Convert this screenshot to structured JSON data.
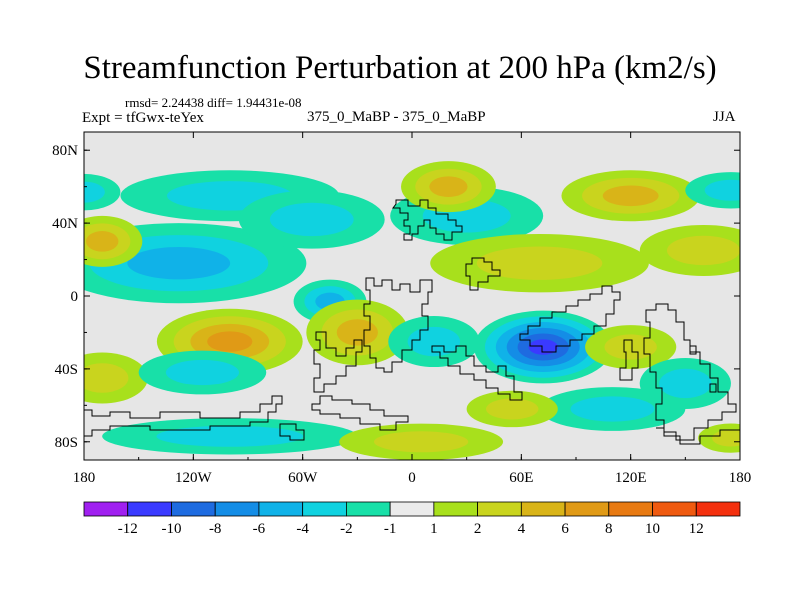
{
  "chart_data": {
    "type": "heatmap",
    "title": "Streamfunction Perturbation at 200 hPa (km2/s)",
    "stats_line": "rmsd= 2.24438 diff= 1.94431e-08",
    "left_label": "Expt = tfGwx-teYex",
    "center_label": "375_0_MaBP - 375_0_MaBP",
    "right_label": "JJA",
    "x_ticks": [
      {
        "value": -180,
        "label": "180"
      },
      {
        "value": -120,
        "label": "120W"
      },
      {
        "value": -60,
        "label": "60W"
      },
      {
        "value": 0,
        "label": "0"
      },
      {
        "value": 60,
        "label": "60E"
      },
      {
        "value": 120,
        "label": "120E"
      },
      {
        "value": 180,
        "label": "180"
      }
    ],
    "y_ticks": [
      {
        "value": 80,
        "label": "80N"
      },
      {
        "value": 40,
        "label": "40N"
      },
      {
        "value": 0,
        "label": "0"
      },
      {
        "value": -40,
        "label": "40S"
      },
      {
        "value": -80,
        "label": "80S"
      }
    ],
    "xlim": [
      -180,
      180
    ],
    "ylim": [
      -90,
      90
    ],
    "colorbar": {
      "levels": [
        "-12",
        "-10",
        "-8",
        "-6",
        "-4",
        "-2",
        "-1",
        "1",
        "2",
        "4",
        "6",
        "8",
        "10",
        "12"
      ],
      "colors": [
        "#a020f0",
        "#3a3aff",
        "#1e6be0",
        "#148de6",
        "#10b2e8",
        "#10d2e0",
        "#18e0a8",
        "#ebebeb",
        "#a8e01c",
        "#c9d41e",
        "#d9b418",
        "#e09a16",
        "#e87a12",
        "#ef5a10",
        "#f4300e"
      ]
    },
    "blobs": [
      {
        "lon": -122,
        "lat": 15,
        "value": -7.5,
        "rx": 52,
        "ry": 14
      },
      {
        "lon": -128,
        "lat": 18,
        "value": -4,
        "rx": 70,
        "ry": 22
      },
      {
        "lon": -100,
        "lat": 55,
        "value": -2.5,
        "rx": 60,
        "ry": 14
      },
      {
        "lon": -55,
        "lat": 42,
        "value": -3,
        "rx": 40,
        "ry": 16
      },
      {
        "lon": 30,
        "lat": 44,
        "value": -3,
        "rx": 42,
        "ry": 16
      },
      {
        "lon": -170,
        "lat": 30,
        "value": 5,
        "rx": 22,
        "ry": 14
      },
      {
        "lon": 20,
        "lat": 60,
        "value": 4.5,
        "rx": 26,
        "ry": 14
      },
      {
        "lon": 120,
        "lat": 55,
        "value": 5,
        "rx": 38,
        "ry": 14
      },
      {
        "lon": 160,
        "lat": 25,
        "value": 3.5,
        "rx": 35,
        "ry": 14
      },
      {
        "lon": 70,
        "lat": 18,
        "value": 3,
        "rx": 60,
        "ry": 16
      },
      {
        "lon": 175,
        "lat": 58,
        "value": -3,
        "rx": 25,
        "ry": 10
      },
      {
        "lon": -180,
        "lat": 57,
        "value": -3,
        "rx": 20,
        "ry": 10
      },
      {
        "lon": -45,
        "lat": -3,
        "value": -5,
        "rx": 20,
        "ry": 12
      },
      {
        "lon": -100,
        "lat": -25,
        "value": 6.5,
        "rx": 40,
        "ry": 18
      },
      {
        "lon": -30,
        "lat": -20,
        "value": 4,
        "rx": 28,
        "ry": 18
      },
      {
        "lon": 72,
        "lat": -28,
        "value": -10,
        "rx": 38,
        "ry": 20
      },
      {
        "lon": 12,
        "lat": -25,
        "value": -2,
        "rx": 25,
        "ry": 14
      },
      {
        "lon": -170,
        "lat": -45,
        "value": 3.5,
        "rx": 25,
        "ry": 14
      },
      {
        "lon": -115,
        "lat": -42,
        "value": -3.5,
        "rx": 35,
        "ry": 12
      },
      {
        "lon": -100,
        "lat": -77,
        "value": -2,
        "rx": 70,
        "ry": 10
      },
      {
        "lon": 5,
        "lat": -80,
        "value": 3.5,
        "rx": 45,
        "ry": 10
      },
      {
        "lon": 120,
        "lat": -28,
        "value": 2,
        "rx": 25,
        "ry": 12
      },
      {
        "lon": 110,
        "lat": -62,
        "value": -3.5,
        "rx": 40,
        "ry": 12
      },
      {
        "lon": 150,
        "lat": -48,
        "value": -3,
        "rx": 25,
        "ry": 14
      },
      {
        "lon": 55,
        "lat": -62,
        "value": 3.5,
        "rx": 25,
        "ry": 10
      },
      {
        "lon": 175,
        "lat": -78,
        "value": 3,
        "rx": 18,
        "ry": 8
      }
    ]
  }
}
